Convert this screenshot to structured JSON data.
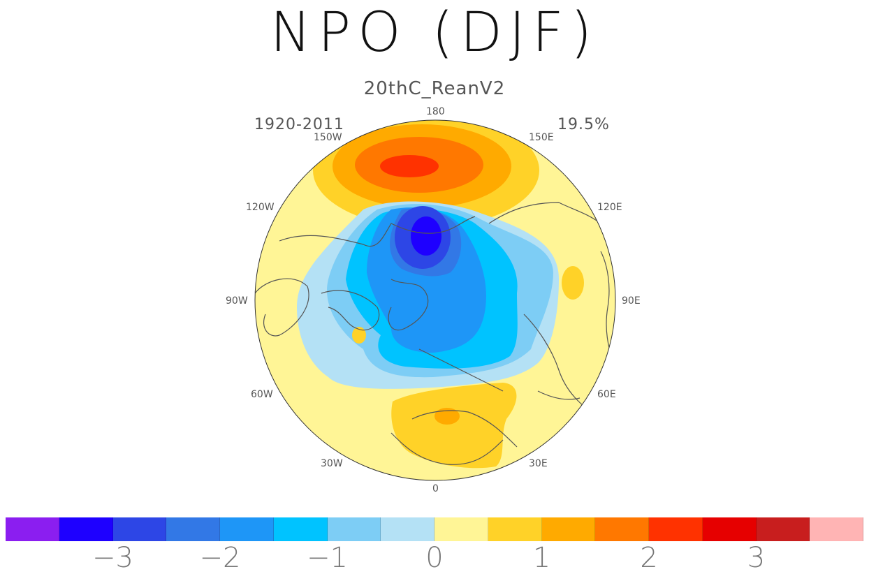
{
  "figure": {
    "title": "NPO (DJF)",
    "subtitle": "20thC_ReanV2",
    "period": "1920-2011",
    "variance": "19.5%"
  },
  "longitude_labels": {
    "top": "180",
    "bottom": "0",
    "lon_150w": "150W",
    "lon_120w": "120W",
    "lon_90w": "90W",
    "lon_60w": "60W",
    "lon_30w": "30W",
    "lon_150e": "150E",
    "lon_120e": "120E",
    "lon_90e": "90E",
    "lon_60e": "60E",
    "lon_30e": "30E"
  },
  "colorbar": {
    "colors": [
      "#8b1ef0",
      "#1e00ff",
      "#2d46e6",
      "#3278e6",
      "#1e96f7",
      "#00c3ff",
      "#7dcdf5",
      "#b4e1f5",
      "#fff596",
      "#ffd228",
      "#ffaa00",
      "#ff7800",
      "#ff3200",
      "#e60000",
      "#c81e1e",
      "#ffb4b4"
    ],
    "tick_labels": [
      "-3",
      "-2",
      "-1",
      "0",
      "1",
      "2",
      "3"
    ]
  },
  "chart_data": {
    "type": "heatmap",
    "title": "NPO (DJF)",
    "subtitle": "20thC_ReanV2",
    "projection": "north polar stereographic",
    "period": "1920-2011",
    "explained_variance": "19.5%",
    "levels": [
      -3.5,
      -3,
      -2.5,
      -2,
      -1.5,
      -1,
      -0.5,
      0,
      0.5,
      1,
      1.5,
      2,
      2.5,
      3,
      3.5
    ],
    "features": [
      {
        "name": "positive center over North Pacific (~180)",
        "max": 2.5
      },
      {
        "name": "negative center over Bering Sea / Alaska",
        "min": -3
      },
      {
        "name": "negative band across Arctic and North Atlantic",
        "min": -2
      },
      {
        "name": "positive center over Mediterranean / N. Africa",
        "max": 1.5
      },
      {
        "name": "weak positive spot over Siberia",
        "max": 1
      }
    ]
  }
}
